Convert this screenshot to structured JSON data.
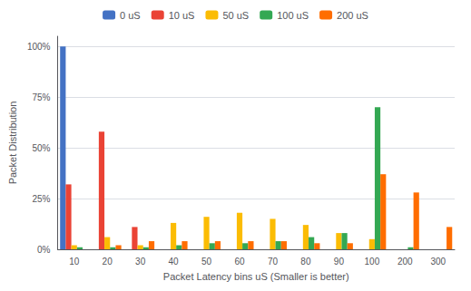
{
  "chart_data": {
    "type": "bar",
    "xlabel": "Packet Latency bins uS (Smaller is better)",
    "ylabel": "Packet Distribution",
    "categories": [
      "10",
      "20",
      "30",
      "40",
      "50",
      "60",
      "70",
      "80",
      "90",
      "100",
      "200",
      "300"
    ],
    "series": [
      {
        "name": "0 uS",
        "color": "#4472C4",
        "values": [
          100,
          0,
          0,
          0,
          0,
          0,
          0,
          0,
          0,
          0,
          0,
          0
        ]
      },
      {
        "name": "10 uS",
        "color": "#EA4335",
        "values": [
          32,
          58,
          11,
          0,
          0,
          0,
          0,
          0,
          0,
          0,
          0,
          0
        ]
      },
      {
        "name": "50 uS",
        "color": "#FBBC04",
        "values": [
          2,
          6,
          2,
          13,
          16,
          18,
          15,
          12,
          8,
          5,
          0,
          0
        ]
      },
      {
        "name": "100 uS",
        "color": "#34A853",
        "values": [
          1,
          1,
          1,
          2,
          3,
          3,
          4,
          6,
          8,
          70,
          1,
          0
        ]
      },
      {
        "name": "200 uS",
        "color": "#FF6D00",
        "values": [
          0,
          2,
          4,
          4,
          4,
          4,
          4,
          3,
          3,
          37,
          28,
          11
        ]
      }
    ],
    "ylim": [
      0,
      105
    ],
    "yticks": [
      {
        "value": 0,
        "label": "0%"
      },
      {
        "value": 25,
        "label": "25%"
      },
      {
        "value": 50,
        "label": "50%"
      },
      {
        "value": 75,
        "label": "75%"
      },
      {
        "value": 100,
        "label": "100%"
      }
    ],
    "grid": true,
    "legend": "top"
  }
}
